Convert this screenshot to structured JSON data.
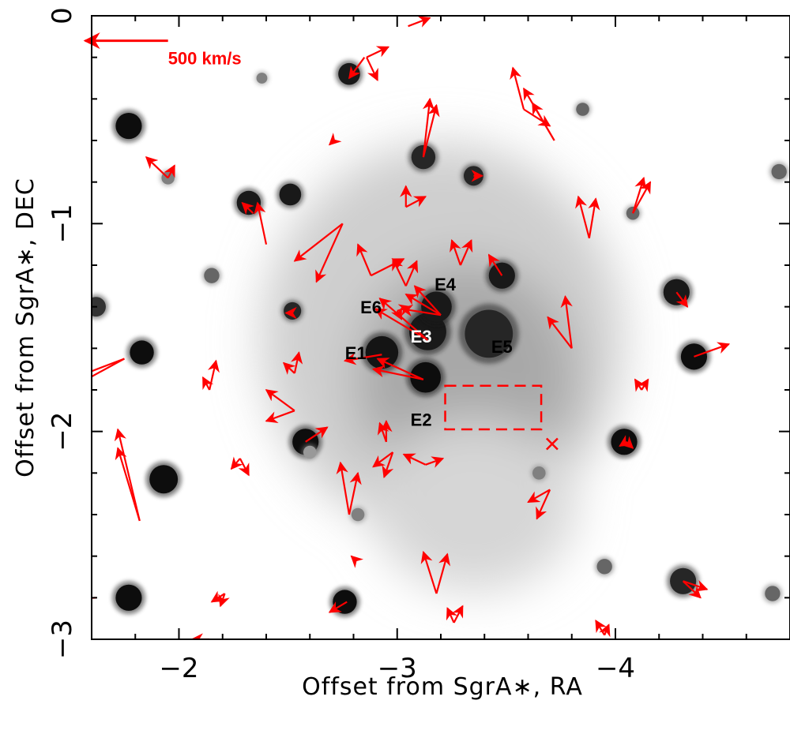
{
  "chart_data": {
    "type": "scatter",
    "xlabel": "Offset from SgrA∗, RA",
    "ylabel": "Offset from SgrA∗, DEC",
    "xlim": [
      -1.6,
      -4.8
    ],
    "ylim": [
      -3,
      0
    ],
    "xticks": [
      {
        "v": -2,
        "label": "−2"
      },
      {
        "v": -3,
        "label": "−3"
      },
      {
        "v": -4,
        "label": "−4"
      }
    ],
    "yticks": [
      {
        "v": 0,
        "label": "0"
      },
      {
        "v": -1,
        "label": "−1"
      },
      {
        "v": -2,
        "label": "−2"
      },
      {
        "v": -3,
        "label": "−3"
      }
    ],
    "grid": false,
    "arrow_color": "#ff0000",
    "scale_arrow": {
      "label": "500 km/s",
      "x": -1.95,
      "y": -0.12,
      "dx": 0.38,
      "dy": 0
    },
    "sources": [
      {
        "name": "E1",
        "x": -2.93,
        "y": -1.62,
        "tx": -2.81,
        "ty": -1.63,
        "white": false
      },
      {
        "name": "E2",
        "x": -3.13,
        "y": -1.74,
        "tx": -3.11,
        "ty": -1.95,
        "white": false
      },
      {
        "name": "E3",
        "x": -3.14,
        "y": -1.52,
        "tx": -3.11,
        "ty": -1.55,
        "white": true
      },
      {
        "name": "E4",
        "x": -3.18,
        "y": -1.4,
        "tx": -3.22,
        "ty": -1.3,
        "white": false
      },
      {
        "name": "E5",
        "x": -3.42,
        "y": -1.53,
        "tx": -3.48,
        "ty": -1.6,
        "white": false
      },
      {
        "name": "E6",
        "x": -2.99,
        "y": -1.39,
        "tx": -2.88,
        "ty": -1.41,
        "white": false
      }
    ],
    "stars": [
      {
        "x": -2.93,
        "y": -1.62,
        "r": 0.075,
        "shade": 0.92
      },
      {
        "x": -3.13,
        "y": -1.74,
        "r": 0.07,
        "shade": 0.95
      },
      {
        "x": -3.14,
        "y": -1.52,
        "r": 0.085,
        "shade": 0.9
      },
      {
        "x": -3.18,
        "y": -1.4,
        "r": 0.07,
        "shade": 0.9
      },
      {
        "x": -3.42,
        "y": -1.53,
        "r": 0.11,
        "shade": 0.85
      },
      {
        "x": -3.48,
        "y": -1.25,
        "r": 0.06,
        "shade": 0.9
      },
      {
        "x": -3.12,
        "y": -0.68,
        "r": 0.055,
        "shade": 0.85
      },
      {
        "x": -3.35,
        "y": -0.77,
        "r": 0.045,
        "shade": 0.85
      },
      {
        "x": -2.78,
        "y": -0.28,
        "r": 0.05,
        "shade": 0.9
      },
      {
        "x": -2.51,
        "y": -0.86,
        "r": 0.05,
        "shade": 0.9
      },
      {
        "x": -2.32,
        "y": -0.9,
        "r": 0.055,
        "shade": 0.9
      },
      {
        "x": -1.77,
        "y": -0.53,
        "r": 0.06,
        "shade": 0.95
      },
      {
        "x": -1.83,
        "y": -1.62,
        "r": 0.055,
        "shade": 0.95
      },
      {
        "x": -2.58,
        "y": -2.05,
        "r": 0.06,
        "shade": 0.95
      },
      {
        "x": -1.93,
        "y": -2.23,
        "r": 0.065,
        "shade": 0.95
      },
      {
        "x": -1.77,
        "y": -2.8,
        "r": 0.06,
        "shade": 0.95
      },
      {
        "x": -2.76,
        "y": -2.82,
        "r": 0.055,
        "shade": 0.95
      },
      {
        "x": -4.04,
        "y": -2.05,
        "r": 0.06,
        "shade": 0.95
      },
      {
        "x": -4.28,
        "y": -1.33,
        "r": 0.06,
        "shade": 0.9
      },
      {
        "x": -4.36,
        "y": -1.64,
        "r": 0.06,
        "shade": 0.95
      },
      {
        "x": -4.31,
        "y": -2.72,
        "r": 0.06,
        "shade": 0.85
      },
      {
        "x": -2.52,
        "y": -1.42,
        "r": 0.04,
        "shade": 0.85
      },
      {
        "x": -1.62,
        "y": -1.4,
        "r": 0.045,
        "shade": 0.8
      },
      {
        "x": -3.85,
        "y": -0.45,
        "r": 0.03,
        "shade": 0.6
      },
      {
        "x": -4.08,
        "y": -0.95,
        "r": 0.03,
        "shade": 0.6
      },
      {
        "x": -1.95,
        "y": -0.78,
        "r": 0.03,
        "shade": 0.5
      },
      {
        "x": -2.6,
        "y": -2.1,
        "r": 0.03,
        "shade": 0.4
      },
      {
        "x": -2.82,
        "y": -2.4,
        "r": 0.03,
        "shade": 0.5
      },
      {
        "x": -3.65,
        "y": -2.2,
        "r": 0.03,
        "shade": 0.5
      },
      {
        "x": -3.95,
        "y": -2.65,
        "r": 0.035,
        "shade": 0.6
      },
      {
        "x": -4.72,
        "y": -2.78,
        "r": 0.035,
        "shade": 0.6
      },
      {
        "x": -4.75,
        "y": -0.75,
        "r": 0.035,
        "shade": 0.6
      },
      {
        "x": -2.15,
        "y": -1.25,
        "r": 0.035,
        "shade": 0.6
      },
      {
        "x": -2.38,
        "y": -0.3,
        "r": 0.025,
        "shade": 0.5
      }
    ],
    "arrows": [
      {
        "x": -3.05,
        "y": -0.05,
        "dx": -0.1,
        "dy": 0.04
      },
      {
        "x": -2.85,
        "y": -0.2,
        "dx": 0.07,
        "dy": -0.1
      },
      {
        "x": -2.86,
        "y": -0.2,
        "dx": -0.1,
        "dy": 0.05
      },
      {
        "x": -2.86,
        "y": -0.2,
        "dx": -0.05,
        "dy": -0.11
      },
      {
        "x": -2.71,
        "y": -0.6,
        "dx": 0.02,
        "dy": -0.02
      },
      {
        "x": -3.12,
        "y": -0.68,
        "dx": -0.03,
        "dy": 0.28
      },
      {
        "x": -3.12,
        "y": -0.68,
        "dx": -0.06,
        "dy": 0.25
      },
      {
        "x": -3.35,
        "y": -0.77,
        "dx": -0.04,
        "dy": 0.0
      },
      {
        "x": -3.58,
        "y": -0.45,
        "dx": 0.05,
        "dy": 0.2
      },
      {
        "x": -3.58,
        "y": -0.45,
        "dx": -0.12,
        "dy": -0.08
      },
      {
        "x": -3.72,
        "y": -0.6,
        "dx": 0.1,
        "dy": 0.18
      },
      {
        "x": -3.72,
        "y": -0.6,
        "dx": 0.14,
        "dy": 0.25
      },
      {
        "x": -1.95,
        "y": -0.78,
        "dx": 0.1,
        "dy": 0.1
      },
      {
        "x": -1.95,
        "y": -0.78,
        "dx": -0.03,
        "dy": 0.06
      },
      {
        "x": -2.34,
        "y": -0.95,
        "dx": 0.05,
        "dy": 0.05
      },
      {
        "x": -2.4,
        "y": -1.1,
        "dx": 0.04,
        "dy": 0.2
      },
      {
        "x": -2.75,
        "y": -1.0,
        "dx": 0.22,
        "dy": -0.18
      },
      {
        "x": -2.75,
        "y": -1.0,
        "dx": 0.12,
        "dy": -0.28
      },
      {
        "x": -2.88,
        "y": -1.25,
        "dx": 0.06,
        "dy": 0.15
      },
      {
        "x": -2.88,
        "y": -1.25,
        "dx": -0.15,
        "dy": 0.08
      },
      {
        "x": -3.04,
        "y": -0.92,
        "dx": -0.09,
        "dy": 0.05
      },
      {
        "x": -3.04,
        "y": -0.92,
        "dx": 0.0,
        "dy": 0.1
      },
      {
        "x": -3.04,
        "y": -1.3,
        "dx": 0.06,
        "dy": 0.13
      },
      {
        "x": -3.04,
        "y": -1.3,
        "dx": -0.05,
        "dy": 0.12
      },
      {
        "x": -3.29,
        "y": -1.2,
        "dx": 0.04,
        "dy": 0.12
      },
      {
        "x": -3.29,
        "y": -1.2,
        "dx": -0.05,
        "dy": 0.12
      },
      {
        "x": -3.48,
        "y": -1.25,
        "dx": 0.06,
        "dy": 0.1
      },
      {
        "x": -3.88,
        "y": -1.07,
        "dx": 0.05,
        "dy": 0.2
      },
      {
        "x": -3.88,
        "y": -1.07,
        "dx": -0.03,
        "dy": 0.19
      },
      {
        "x": -4.08,
        "y": -0.95,
        "dx": -0.08,
        "dy": 0.15
      },
      {
        "x": -4.08,
        "y": -0.95,
        "dx": -0.05,
        "dy": 0.17
      },
      {
        "x": -3.8,
        "y": -1.6,
        "dx": 0.11,
        "dy": 0.15
      },
      {
        "x": -3.8,
        "y": -1.6,
        "dx": 0.03,
        "dy": 0.25
      },
      {
        "x": -4.28,
        "y": -1.33,
        "dx": -0.05,
        "dy": -0.07
      },
      {
        "x": -4.36,
        "y": -1.64,
        "dx": -0.16,
        "dy": 0.06
      },
      {
        "x": -4.12,
        "y": -1.8,
        "dx": 0.03,
        "dy": 0.05
      },
      {
        "x": -4.12,
        "y": -1.8,
        "dx": -0.03,
        "dy": 0.05
      },
      {
        "x": -1.75,
        "y": -1.65,
        "dx": 0.2,
        "dy": -0.08
      },
      {
        "x": -1.75,
        "y": -1.65,
        "dx": 0.21,
        "dy": -0.12
      },
      {
        "x": -2.52,
        "y": -1.43,
        "dx": 0.03,
        "dy": 0.0
      },
      {
        "x": -2.53,
        "y": -1.72,
        "dx": -0.02,
        "dy": 0.1
      },
      {
        "x": -2.53,
        "y": -1.72,
        "dx": 0.05,
        "dy": 0.05
      },
      {
        "x": -2.14,
        "y": -1.8,
        "dx": -0.03,
        "dy": 0.14
      },
      {
        "x": -2.14,
        "y": -1.8,
        "dx": 0.03,
        "dy": 0.06
      },
      {
        "x": -2.53,
        "y": -1.9,
        "dx": 0.13,
        "dy": 0.1
      },
      {
        "x": -2.53,
        "y": -1.9,
        "dx": 0.13,
        "dy": -0.05
      },
      {
        "x": -2.93,
        "y": -1.63,
        "dx": 0.17,
        "dy": -0.03
      },
      {
        "x": -3.12,
        "y": -1.75,
        "dx": 0.21,
        "dy": 0.1
      },
      {
        "x": -3.12,
        "y": -1.75,
        "dx": 0.23,
        "dy": 0.05
      },
      {
        "x": -3.14,
        "y": -1.56,
        "dx": 0.22,
        "dy": 0.2
      },
      {
        "x": -3.14,
        "y": -1.56,
        "dx": 0.24,
        "dy": 0.15
      },
      {
        "x": -3.2,
        "y": -1.44,
        "dx": 0.12,
        "dy": 0.14
      },
      {
        "x": -3.2,
        "y": -1.44,
        "dx": 0.16,
        "dy": 0.1
      },
      {
        "x": -3.2,
        "y": -1.44,
        "dx": 0.18,
        "dy": 0.03
      },
      {
        "x": -3.0,
        "y": -1.42,
        "dx": -0.06,
        "dy": 0.02
      },
      {
        "x": -3.0,
        "y": -1.42,
        "dx": -0.02,
        "dy": -0.04
      },
      {
        "x": -2.58,
        "y": -2.05,
        "dx": -0.1,
        "dy": 0.07
      },
      {
        "x": -2.28,
        "y": -2.13,
        "dx": -0.04,
        "dy": -0.08
      },
      {
        "x": -2.28,
        "y": -2.13,
        "dx": 0.04,
        "dy": -0.05
      },
      {
        "x": -2.95,
        "y": -2.05,
        "dx": 0.0,
        "dy": 0.1
      },
      {
        "x": -2.95,
        "y": -2.05,
        "dx": 0.03,
        "dy": 0.09
      },
      {
        "x": -2.98,
        "y": -2.1,
        "dx": 0.09,
        "dy": -0.07
      },
      {
        "x": -2.98,
        "y": -2.1,
        "dx": 0.04,
        "dy": -0.12
      },
      {
        "x": -2.78,
        "y": -2.4,
        "dx": 0.04,
        "dy": 0.25
      },
      {
        "x": -2.78,
        "y": -2.4,
        "dx": -0.04,
        "dy": 0.2
      },
      {
        "x": -3.13,
        "y": -2.16,
        "dx": 0.1,
        "dy": 0.05
      },
      {
        "x": -3.13,
        "y": -2.16,
        "dx": -0.08,
        "dy": 0.03
      },
      {
        "x": -1.82,
        "y": -2.43,
        "dx": 0.1,
        "dy": 0.35
      },
      {
        "x": -1.82,
        "y": -2.43,
        "dx": 0.1,
        "dy": 0.44
      },
      {
        "x": -3.18,
        "y": -2.78,
        "dx": 0.06,
        "dy": 0.2
      },
      {
        "x": -3.18,
        "y": -2.78,
        "dx": -0.05,
        "dy": 0.19
      },
      {
        "x": -3.7,
        "y": -2.28,
        "dx": 0.1,
        "dy": -0.06
      },
      {
        "x": -3.7,
        "y": -2.28,
        "dx": 0.06,
        "dy": -0.14
      },
      {
        "x": -4.05,
        "y": -2.05,
        "dx": 0.03,
        "dy": -0.02
      },
      {
        "x": -4.05,
        "y": -2.05,
        "dx": -0.03,
        "dy": -0.03
      },
      {
        "x": -4.31,
        "y": -2.72,
        "dx": -0.11,
        "dy": -0.04
      },
      {
        "x": -4.31,
        "y": -2.72,
        "dx": -0.08,
        "dy": -0.08
      },
      {
        "x": -2.77,
        "y": -2.82,
        "dx": 0.08,
        "dy": -0.05
      },
      {
        "x": -2.21,
        "y": -2.78,
        "dx": 0.06,
        "dy": -0.04
      },
      {
        "x": -2.21,
        "y": -2.78,
        "dx": 0.02,
        "dy": -0.06
      },
      {
        "x": -1.62,
        "y": -2.8,
        "dx": 0.15,
        "dy": -0.01
      },
      {
        "x": -2.81,
        "y": -2.62,
        "dx": 0.02,
        "dy": 0.02
      },
      {
        "x": -3.26,
        "y": -2.92,
        "dx": 0.03,
        "dy": 0.07
      },
      {
        "x": -3.26,
        "y": -2.92,
        "dx": -0.04,
        "dy": 0.08
      },
      {
        "x": -3.95,
        "y": -2.98,
        "dx": 0.04,
        "dy": 0.07
      },
      {
        "x": -3.95,
        "y": -2.98,
        "dx": -0.02,
        "dy": 0.05
      },
      {
        "x": -2.14,
        "y": -3.0,
        "dx": 0.08,
        "dy": 0.0
      }
    ],
    "dashed_box": {
      "x0": -3.22,
      "y0": -1.78,
      "x1": -3.66,
      "y1": -1.99
    },
    "cross_marker": {
      "x": -3.71,
      "y": -2.06
    }
  }
}
